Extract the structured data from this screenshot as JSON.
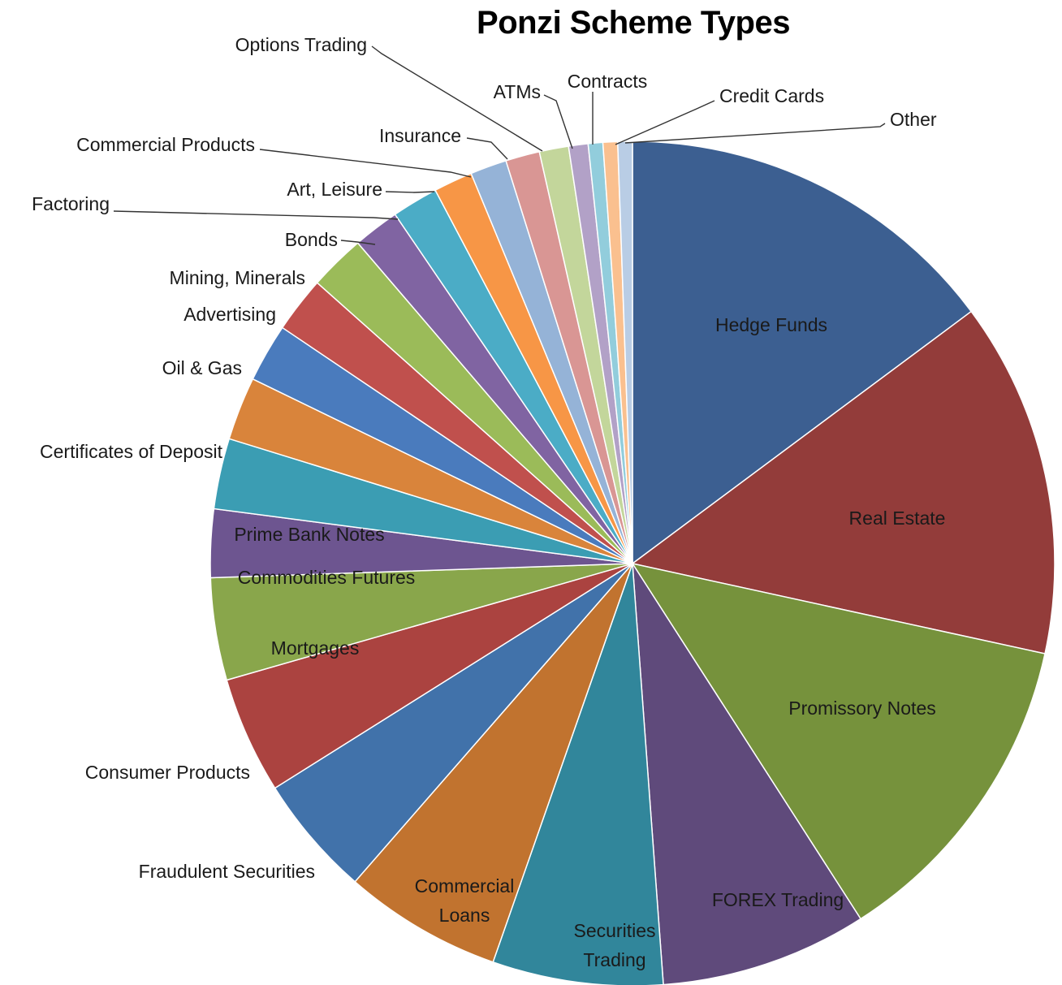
{
  "chart_data": {
    "type": "pie",
    "title": "Ponzi Scheme Types",
    "slices": [
      {
        "label": "Hedge Funds",
        "value": 15.9,
        "color": "#3c5f91"
      },
      {
        "label": "Real Estate",
        "value": 14.6,
        "color": "#933c3a"
      },
      {
        "label": "Promissory Notes",
        "value": 13.4,
        "color": "#76923c"
      },
      {
        "label": "FOREX Trading",
        "value": 8.5,
        "color": "#5f4a7b"
      },
      {
        "label": "Securities\nTrading",
        "value": 7.0,
        "color": "#31869b"
      },
      {
        "label": "Commercial\nLoans",
        "value": 6.5,
        "color": "#c1732f"
      },
      {
        "label": "Fraudulent Securities",
        "value": 5.0,
        "color": "#4172aa"
      },
      {
        "label": "Consumer Products",
        "value": 4.8,
        "color": "#ab4340"
      },
      {
        "label": "Mortgages",
        "value": 4.2,
        "color": "#89a64b"
      },
      {
        "label": "Commodities Futures",
        "value": 2.8,
        "color": "#6d5590"
      },
      {
        "label": "Prime Bank Notes",
        "value": 2.9,
        "color": "#3b9db3"
      },
      {
        "label": "Certificates of Deposit",
        "value": 2.6,
        "color": "#d9843b"
      },
      {
        "label": "Oil & Gas",
        "value": 2.4,
        "color": "#4a7bbd"
      },
      {
        "label": "Advertising",
        "value": 2.3,
        "color": "#c0504d"
      },
      {
        "label": "Mining, Minerals",
        "value": 2.3,
        "color": "#9bbb59"
      },
      {
        "label": "Bonds",
        "value": 1.9,
        "color": "#8064a2"
      },
      {
        "label": "Factoring",
        "value": 1.9,
        "color": "#4bacc6"
      },
      {
        "label": "Art, Leisure",
        "value": 1.6,
        "color": "#f79646"
      },
      {
        "label": "Commercial Products",
        "value": 1.5,
        "color": "#95b3d7"
      },
      {
        "label": "Insurance",
        "value": 1.4,
        "color": "#d99694"
      },
      {
        "label": "Options Trading",
        "value": 1.2,
        "color": "#c3d69b"
      },
      {
        "label": "ATMs",
        "value": 0.8,
        "color": "#b2a1c7"
      },
      {
        "label": "Contracts",
        "value": 0.6,
        "color": "#92cddc"
      },
      {
        "label": "Credit Cards",
        "value": 0.6,
        "color": "#fac08f"
      },
      {
        "label": "Other",
        "value": 0.6,
        "color": "#b9cde5"
      }
    ],
    "legend": "none"
  }
}
